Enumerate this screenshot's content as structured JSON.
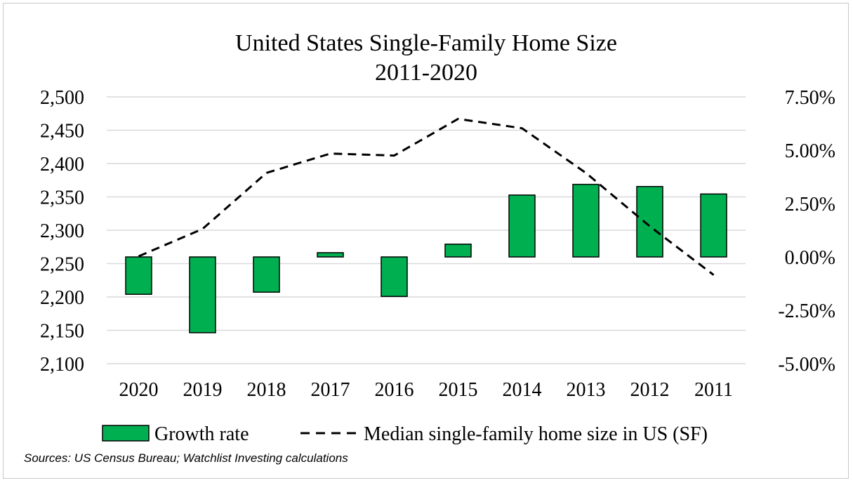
{
  "chart_data": {
    "type": "bar+line",
    "title": "United States Single-Family Home Size",
    "subtitle": "2011-2020",
    "categories": [
      "2020",
      "2019",
      "2018",
      "2017",
      "2016",
      "2015",
      "2014",
      "2013",
      "2012",
      "2011"
    ],
    "series": [
      {
        "name": "Growth rate",
        "kind": "bar",
        "axis": "right",
        "unit": "percent",
        "color": "#00b050",
        "values": [
          -1.75,
          -3.55,
          -1.65,
          0.2,
          -1.85,
          0.6,
          2.9,
          3.4,
          3.3,
          2.95
        ]
      },
      {
        "name": "Median single-family home size in US (SF)",
        "kind": "line",
        "axis": "left",
        "style": "dashed",
        "color": "#000000",
        "values": [
          2261,
          2302,
          2386,
          2415,
          2412,
          2467,
          2453,
          2386,
          2306,
          2233
        ]
      }
    ],
    "left_axis": {
      "min": 2100,
      "max": 2500,
      "step": 50,
      "tick_labels": [
        "2,500",
        "2,450",
        "2,400",
        "2,350",
        "2,300",
        "2,250",
        "2,200",
        "2,150",
        "2,100"
      ]
    },
    "right_axis": {
      "min": -5.0,
      "max": 7.5,
      "step": 2.5,
      "tick_labels": [
        "7.50%",
        "5.00%",
        "2.50%",
        "0.00%",
        "-2.50%",
        "-5.00%"
      ]
    },
    "grid": true,
    "legend_position": "bottom"
  },
  "legend": {
    "bar_label": "Growth rate",
    "line_label": "Median single-family home size in US (SF)"
  },
  "source_note": "Sources: US Census Bureau; Watchlist Investing calculations"
}
